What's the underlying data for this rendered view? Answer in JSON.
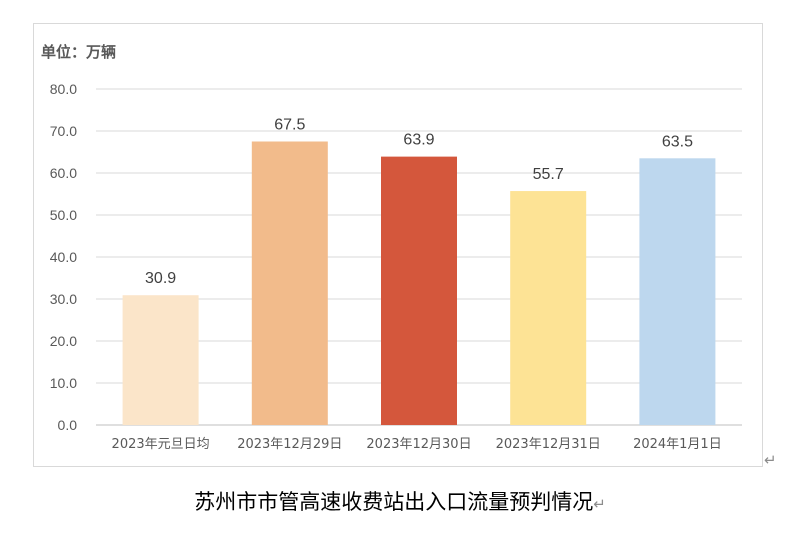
{
  "chart_data": {
    "type": "bar",
    "unit_label": "单位：万辆",
    "categories": [
      "2023年元旦日均",
      "2023年12月29日",
      "2023年12月30日",
      "2023年12月31日",
      "2024年1月1日"
    ],
    "values": [
      30.9,
      67.5,
      63.9,
      55.7,
      63.5
    ],
    "value_labels": [
      "30.9",
      "67.5",
      "63.9",
      "55.7",
      "63.5"
    ],
    "colors": [
      "#fbe5c9",
      "#f2bb8b",
      "#d4573c",
      "#fde395",
      "#bdd7ee"
    ],
    "ylim": [
      0,
      80
    ],
    "yticks": [
      "0.0",
      "10.0",
      "20.0",
      "30.0",
      "40.0",
      "50.0",
      "60.0",
      "70.0",
      "80.0"
    ],
    "grid": true,
    "legend": "none",
    "title": "苏州市市管高速收费站出入口流量预判情况"
  },
  "marks": {
    "paragraph": "↵"
  }
}
